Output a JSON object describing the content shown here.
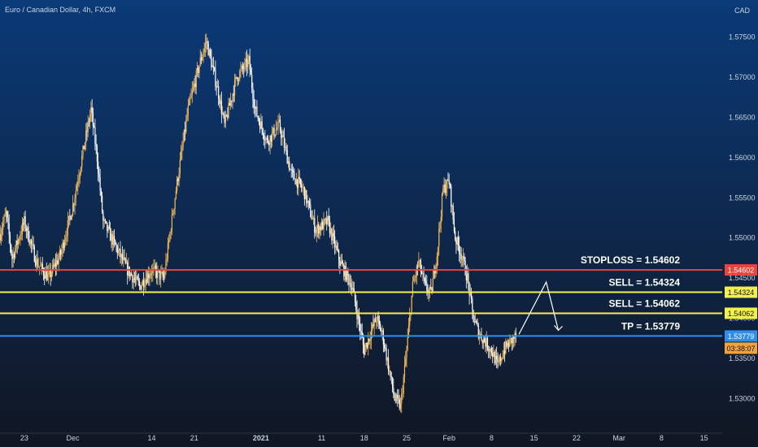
{
  "header": {
    "symbol_title": "Euro / Canadian Dollar, 4h, FXCM",
    "currency": "CAD"
  },
  "colors": {
    "bg_top": "#0a3a78",
    "bg_bottom": "#111622",
    "candle_up": "#f2b85a",
    "candle_down": "#ffffff",
    "stoploss": "#e8453c",
    "sell": "#f2f04a",
    "tp": "#2f8ff0",
    "time_badge": "#f2a33a",
    "axis_text": "#c9d3e0"
  },
  "chart_data": {
    "type": "candlestick",
    "title": "Euro / Canadian Dollar, 4h, FXCM",
    "y_axis_label": "CAD",
    "ylim": [
      1.526,
      1.579
    ],
    "y_ticks": [
      1.53,
      1.535,
      1.54,
      1.545,
      1.55,
      1.555,
      1.56,
      1.565,
      1.57,
      1.575
    ],
    "y_tick_labels": [
      "1.53000",
      "1.53500",
      "1.54000",
      "1.54500",
      "1.55000",
      "1.55500",
      "1.56000",
      "1.56500",
      "1.57000",
      "1.57500"
    ],
    "x_ticks": [
      {
        "label": "23",
        "day": 0
      },
      {
        "label": "Dec",
        "day": 8
      },
      {
        "label": "14",
        "day": 21
      },
      {
        "label": "21",
        "day": 28
      },
      {
        "label": "2021",
        "day": 39
      },
      {
        "label": "11",
        "day": 49
      },
      {
        "label": "18",
        "day": 56
      },
      {
        "label": "25",
        "day": 63
      },
      {
        "label": "Feb",
        "day": 70
      },
      {
        "label": "8",
        "day": 77
      },
      {
        "label": "15",
        "day": 84
      },
      {
        "label": "22",
        "day": 91
      },
      {
        "label": "Mar",
        "day": 98
      },
      {
        "label": "8",
        "day": 105
      },
      {
        "label": "15",
        "day": 112
      }
    ],
    "x_domain": [
      -4,
      115
    ],
    "price_path": [
      [
        -4,
        1.5505
      ],
      [
        -3,
        1.553
      ],
      [
        -2,
        1.5475
      ],
      [
        0,
        1.552
      ],
      [
        2,
        1.547
      ],
      [
        4,
        1.545
      ],
      [
        6,
        1.548
      ],
      [
        8,
        1.554
      ],
      [
        10,
        1.562
      ],
      [
        11,
        1.566
      ],
      [
        12,
        1.56
      ],
      [
        13,
        1.552
      ],
      [
        15,
        1.549
      ],
      [
        17,
        1.546
      ],
      [
        19,
        1.544
      ],
      [
        21,
        1.546
      ],
      [
        23,
        1.545
      ],
      [
        25,
        1.556
      ],
      [
        27,
        1.566
      ],
      [
        29,
        1.572
      ],
      [
        30,
        1.5745
      ],
      [
        32,
        1.568
      ],
      [
        33,
        1.564
      ],
      [
        35,
        1.57
      ],
      [
        37,
        1.572
      ],
      [
        38,
        1.566
      ],
      [
        40,
        1.562
      ],
      [
        42,
        1.564
      ],
      [
        44,
        1.558
      ],
      [
        46,
        1.556
      ],
      [
        48,
        1.551
      ],
      [
        50,
        1.552
      ],
      [
        52,
        1.547
      ],
      [
        54,
        1.544
      ],
      [
        56,
        1.536
      ],
      [
        57,
        1.538
      ],
      [
        58,
        1.54
      ],
      [
        59,
        1.538
      ],
      [
        60,
        1.534
      ],
      [
        61,
        1.53
      ],
      [
        62,
        1.529
      ],
      [
        63,
        1.536
      ],
      [
        64,
        1.544
      ],
      [
        65,
        1.547
      ],
      [
        66,
        1.544
      ],
      [
        67,
        1.543
      ],
      [
        68,
        1.548
      ],
      [
        69,
        1.556
      ],
      [
        70,
        1.557
      ],
      [
        71,
        1.55
      ],
      [
        72,
        1.548
      ],
      [
        73,
        1.545
      ],
      [
        74,
        1.54
      ],
      [
        75,
        1.538
      ],
      [
        76,
        1.537
      ],
      [
        77,
        1.536
      ],
      [
        78,
        1.534
      ],
      [
        79,
        1.536
      ],
      [
        80,
        1.537
      ],
      [
        81,
        1.5378
      ]
    ],
    "levels": [
      {
        "name": "STOPLOSS",
        "label": "STOPLOSS = 1.54602",
        "value": 1.54602,
        "badge": "1.54602",
        "color": "#e8453c"
      },
      {
        "name": "SELL-1",
        "label": "SELL = 1.54324",
        "value": 1.54324,
        "badge": "1.54324",
        "color": "#f2f04a"
      },
      {
        "name": "SELL-2",
        "label": "SELL = 1.54062",
        "value": 1.54062,
        "badge": "1.54062",
        "color": "#f2f04a"
      },
      {
        "name": "TP",
        "label": "TP = 1.53779",
        "value": 1.53779,
        "badge": "1.53779",
        "color": "#2f8ff0"
      }
    ],
    "countdown": "03:38:07",
    "projection": [
      {
        "day": 81.5,
        "price": 1.538
      },
      {
        "day": 86,
        "price": 1.5445
      },
      {
        "day": 88,
        "price": 1.5385
      }
    ]
  }
}
